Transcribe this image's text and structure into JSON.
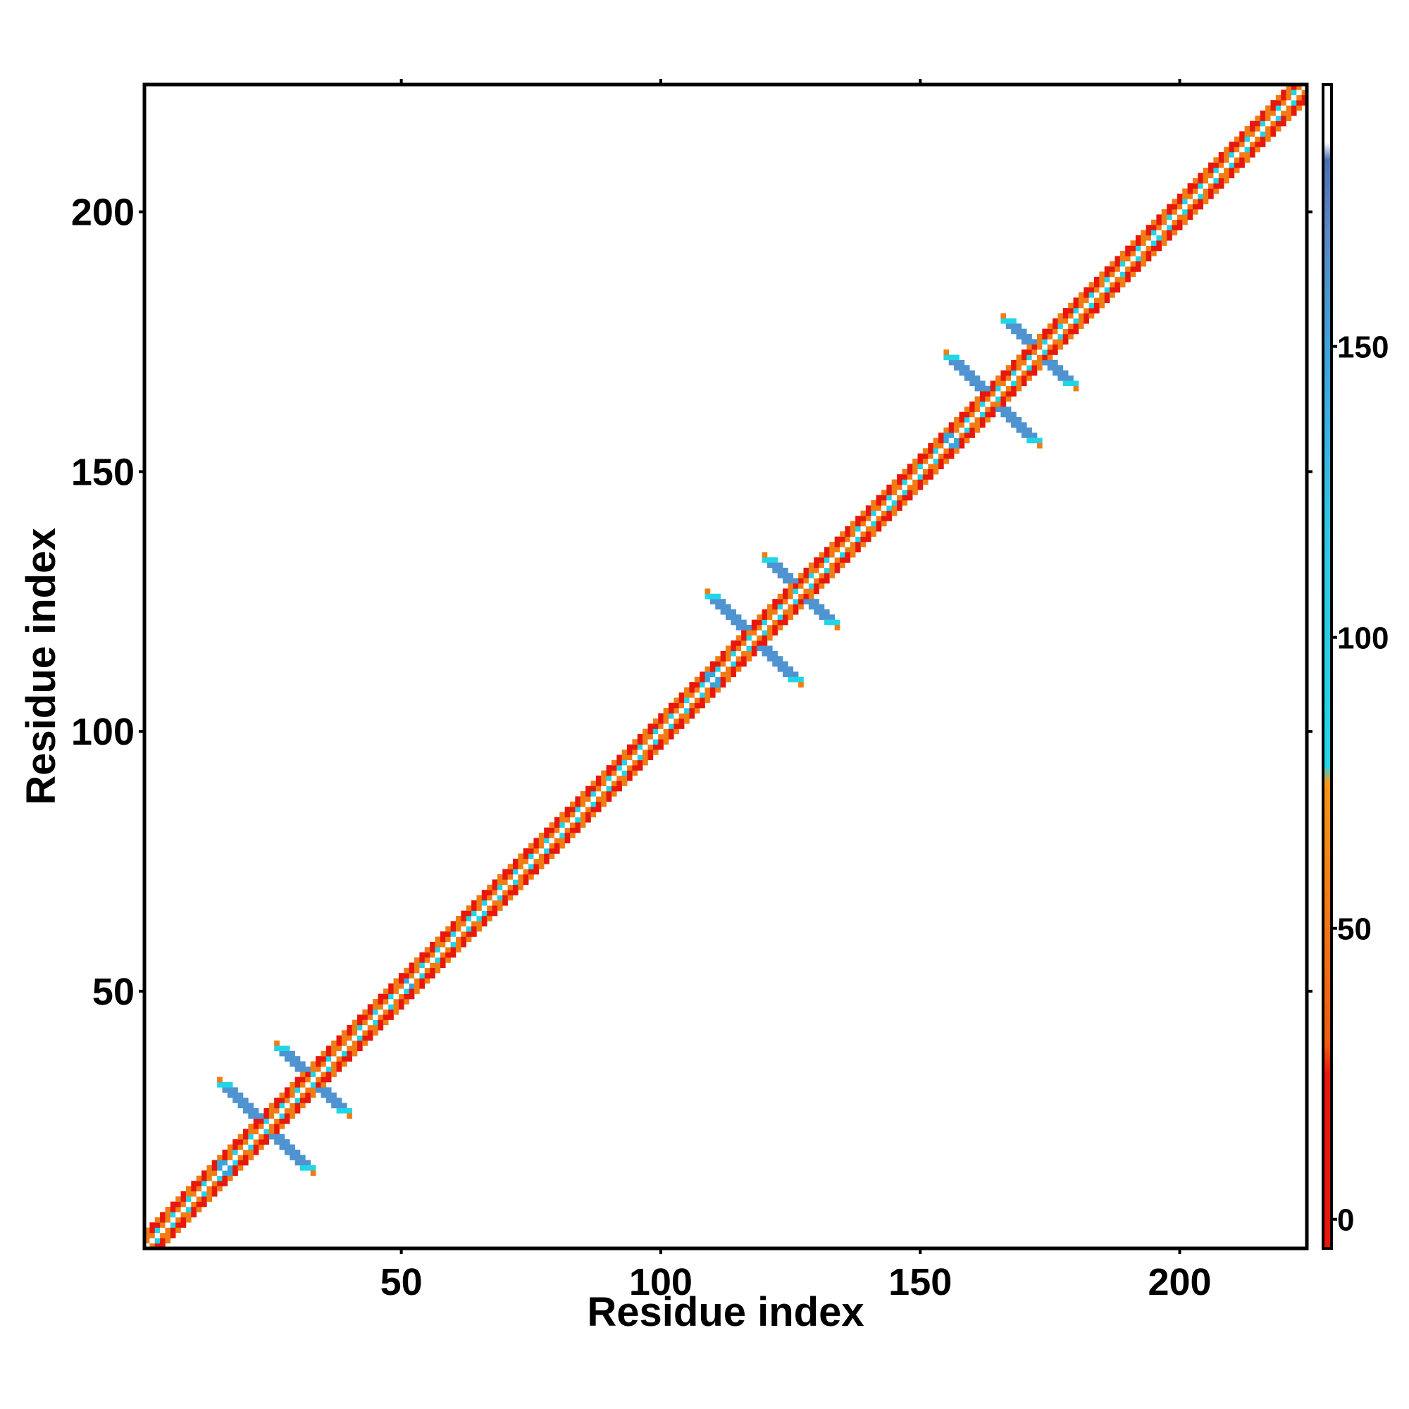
{
  "chart_data": {
    "type": "heatmap",
    "title": "",
    "xlabel": "Residue index",
    "ylabel": "Residue index",
    "xlim": [
      1,
      224
    ],
    "ylim": [
      1,
      224
    ],
    "x_ticks": [
      50,
      100,
      150,
      200
    ],
    "y_ticks": [
      50,
      100,
      150,
      200
    ],
    "grid": false,
    "colorbar": {
      "ticks": [
        0,
        50,
        100,
        150
      ],
      "range": [
        -5,
        195
      ],
      "bands": [
        {
          "from": -5,
          "to": 25,
          "color": "#e8170c"
        },
        {
          "from": 25,
          "to": 75,
          "color": "#f07d14"
        },
        {
          "from": 75,
          "to": 175,
          "color": "#20d6e6"
        },
        {
          "from": 175,
          "to": 185,
          "color": "#5a86c2"
        },
        {
          "from": 185,
          "to": 195,
          "color": "#ffffff"
        }
      ],
      "gradient": [
        {
          "v": -5,
          "c": "#e8170c"
        },
        {
          "v": 25,
          "c": "#e8170c"
        },
        {
          "v": 30,
          "c": "#f05a10"
        },
        {
          "v": 75,
          "c": "#f59614"
        },
        {
          "v": 78,
          "c": "#20d6e6"
        },
        {
          "v": 120,
          "c": "#30c4e4"
        },
        {
          "v": 150,
          "c": "#3fa2d8"
        },
        {
          "v": 170,
          "c": "#5a86c2"
        },
        {
          "v": 182,
          "c": "#4a70b0"
        },
        {
          "v": 185,
          "c": "#ffffff"
        },
        {
          "v": 195,
          "c": "#ffffff"
        }
      ]
    },
    "diagonal_band": {
      "half_width": 3,
      "colors": [
        "#ffffff",
        "#f07d14",
        "#20d6e6",
        "#e8170c"
      ]
    },
    "cross_features": [
      {
        "i": 24,
        "j": 24,
        "arm": 8,
        "color": "#4f93d0"
      },
      {
        "i": 33,
        "j": 33,
        "arm": 6,
        "color": "#4f93d0"
      },
      {
        "i": 118,
        "j": 118,
        "arm": 8,
        "color": "#4f93d0"
      },
      {
        "i": 127,
        "j": 127,
        "arm": 6,
        "color": "#4f93d0"
      },
      {
        "i": 164,
        "j": 164,
        "arm": 8,
        "color": "#4f93d0"
      },
      {
        "i": 173,
        "j": 173,
        "arm": 6,
        "color": "#4f93d0"
      }
    ],
    "patches": [
      {
        "x": 16,
        "y": 16,
        "s": 3,
        "color": "#3aa5d8"
      },
      {
        "x": 110,
        "y": 110,
        "s": 3,
        "color": "#3aa5d8"
      },
      {
        "x": 156,
        "y": 156,
        "s": 3,
        "color": "#3aa5d8"
      },
      {
        "x": 40,
        "y": 40,
        "s": 3,
        "color": "#f07d14"
      },
      {
        "x": 52,
        "y": 52,
        "s": 2,
        "color": "#3aa5d8"
      },
      {
        "x": 65,
        "y": 65,
        "s": 2,
        "color": "#20d6e6"
      },
      {
        "x": 80,
        "y": 80,
        "s": 2,
        "color": "#f07d14"
      },
      {
        "x": 93,
        "y": 93,
        "s": 2,
        "color": "#20d6e6"
      },
      {
        "x": 136,
        "y": 136,
        "s": 2,
        "color": "#f07d14"
      },
      {
        "x": 145,
        "y": 145,
        "s": 2,
        "color": "#20d6e6"
      },
      {
        "x": 185,
        "y": 185,
        "s": 2,
        "color": "#f07d14"
      },
      {
        "x": 196,
        "y": 196,
        "s": 2,
        "color": "#20d6e6"
      },
      {
        "x": 206,
        "y": 206,
        "s": 2,
        "color": "#f07d14"
      }
    ]
  }
}
